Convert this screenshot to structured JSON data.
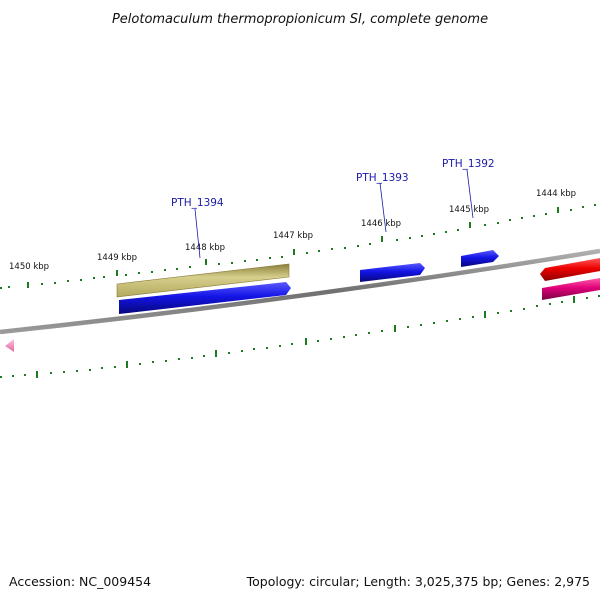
{
  "title": "Pelotomaculum thermopropionicum SI, complete genome",
  "footer": {
    "accession": "Accession: NC_009454",
    "summary": "Topology: circular; Length: 3,025,375 bp; Genes: 2,975"
  },
  "colors": {
    "backbone": "#808080",
    "ticks": "#1e7a1e",
    "gene_label": "#1a1aa8",
    "blue": "#1414e6",
    "khaki": "#bdb76b",
    "red": "#ee0000",
    "magenta": "#e0007a",
    "pink": "#f07ab4"
  },
  "ticks": [
    {
      "kbp": 1450,
      "label": "1450 kbp"
    },
    {
      "kbp": 1449,
      "label": "1449 kbp"
    },
    {
      "kbp": 1448,
      "label": "1448 kbp"
    },
    {
      "kbp": 1447,
      "label": "1447 kbp"
    },
    {
      "kbp": 1446,
      "label": "1446 kbp"
    },
    {
      "kbp": 1445,
      "label": "1445 kbp"
    },
    {
      "kbp": 1444,
      "label": "1444 kbp"
    }
  ],
  "gene_labels": [
    {
      "name": "PTH_1394"
    },
    {
      "name": "PTH_1393"
    },
    {
      "name": "PTH_1392"
    }
  ],
  "features": [
    {
      "name": "khaki-feature",
      "color": "khaki",
      "track": "outer",
      "strand": "none"
    },
    {
      "name": "gene-pth-1394",
      "color": "blue",
      "track": "inner",
      "strand": "forward"
    },
    {
      "name": "gene-pth-1393",
      "color": "blue",
      "track": "outer",
      "strand": "forward"
    },
    {
      "name": "gene-pth-1392",
      "color": "blue",
      "track": "outer",
      "strand": "forward"
    },
    {
      "name": "red-feature",
      "color": "red",
      "track": "outer",
      "strand": "reverse"
    },
    {
      "name": "magenta-feature",
      "color": "magenta",
      "track": "inner",
      "strand": "reverse"
    },
    {
      "name": "pink-feature",
      "color": "pink",
      "track": "inner",
      "strand": "reverse"
    }
  ]
}
